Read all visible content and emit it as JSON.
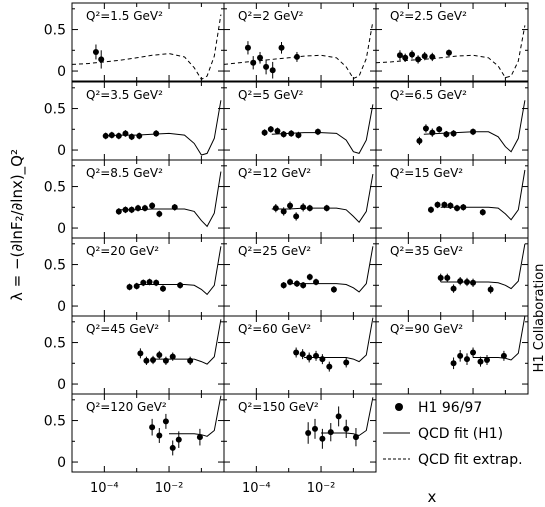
{
  "chart_data": {
    "type": "scatter",
    "ylabel": "λ = −(∂lnF₂/∂lnx)_Q²",
    "xlabel": "x",
    "x_scale": "log",
    "x_ticks": [
      {
        "value": 0.0001,
        "label": "10⁻⁴"
      },
      {
        "value": 0.01,
        "label": "10⁻²"
      }
    ],
    "y_ticks": [
      0,
      0.5
    ],
    "ylim": [
      -0.12,
      0.82
    ],
    "collaboration": "H1 Collaboration",
    "legend": {
      "placement": "bottom-right",
      "entries": [
        {
          "label": "H1 96/97",
          "style": "marker"
        },
        {
          "label": "QCD fit (H1)",
          "style": "solid"
        },
        {
          "label": "QCD fit extrap.",
          "style": "dashed"
        }
      ]
    },
    "panels": [
      {
        "label": "Q²=1.5 GeV²",
        "points": [
          [
            5.5e-05,
            0.23,
            0.09
          ],
          [
            8e-05,
            0.14,
            0.11
          ]
        ],
        "fit": "dashed",
        "fit_y": [
          0.08,
          0.09,
          0.11,
          0.13,
          0.16,
          0.19,
          0.21,
          0.17,
          0.04,
          -0.1,
          -0.06,
          0.18,
          0.68
        ]
      },
      {
        "label": "Q²=2 GeV²",
        "points": [
          [
            5.5e-05,
            0.28,
            0.08
          ],
          [
            8e-05,
            0.1,
            0.08
          ],
          [
            0.00013,
            0.16,
            0.07
          ],
          [
            0.0002,
            0.05,
            0.09
          ],
          [
            0.00032,
            0.01,
            0.1
          ],
          [
            0.0006,
            0.28,
            0.07
          ],
          [
            0.0018,
            0.17,
            0.06
          ]
        ],
        "fit": "dashed",
        "fit_y": [
          0.08,
          0.1,
          0.12,
          0.14,
          0.16,
          0.18,
          0.19,
          0.16,
          0.05,
          -0.09,
          -0.06,
          0.15,
          0.6
        ]
      },
      {
        "label": "Q²=2.5 GeV²",
        "points": [
          [
            5.5e-05,
            0.19,
            0.06
          ],
          [
            8e-05,
            0.16,
            0.05
          ],
          [
            0.00013,
            0.2,
            0.05
          ],
          [
            0.0002,
            0.14,
            0.05
          ],
          [
            0.00032,
            0.18,
            0.05
          ],
          [
            0.00055,
            0.17,
            0.05
          ],
          [
            0.0018,
            0.22,
            0.04
          ]
        ],
        "fit": "dashed",
        "fit_y": [
          0.1,
          0.11,
          0.13,
          0.14,
          0.16,
          0.18,
          0.19,
          0.16,
          0.06,
          -0.08,
          -0.06,
          0.12,
          0.55
        ]
      },
      {
        "label": "Q²=3.5 GeV²",
        "points": [
          [
            0.00011,
            0.17,
            0.04
          ],
          [
            0.00017,
            0.18,
            0.04
          ],
          [
            0.00028,
            0.17,
            0.04
          ],
          [
            0.00045,
            0.2,
            0.04
          ],
          [
            0.0007,
            0.16,
            0.04
          ],
          [
            0.0012,
            0.17,
            0.04
          ],
          [
            0.004,
            0.2,
            0.04
          ]
        ],
        "fit": "solid",
        "fit_y": [
          null,
          null,
          0.17,
          0.18,
          0.18,
          0.19,
          0.2,
          0.18,
          0.08,
          -0.06,
          -0.04,
          0.14,
          0.6
        ]
      },
      {
        "label": "Q²=5 GeV²",
        "points": [
          [
            0.00018,
            0.21,
            0.04
          ],
          [
            0.00028,
            0.25,
            0.04
          ],
          [
            0.00045,
            0.23,
            0.04
          ],
          [
            0.0007,
            0.19,
            0.04
          ],
          [
            0.0012,
            0.2,
            0.04
          ],
          [
            0.002,
            0.18,
            0.04
          ],
          [
            0.008,
            0.22,
            0.04
          ]
        ],
        "fit": "solid",
        "fit_y": [
          null,
          null,
          null,
          0.19,
          0.2,
          0.21,
          0.21,
          0.2,
          0.12,
          -0.02,
          -0.04,
          0.12,
          0.55
        ]
      },
      {
        "label": "Q²=6.5 GeV²",
        "points": [
          [
            0.00022,
            0.11,
            0.05
          ],
          [
            0.00035,
            0.26,
            0.05
          ],
          [
            0.00055,
            0.21,
            0.05
          ],
          [
            0.0009,
            0.25,
            0.04
          ],
          [
            0.0015,
            0.19,
            0.04
          ],
          [
            0.0025,
            0.2,
            0.04
          ],
          [
            0.01,
            0.22,
            0.04
          ]
        ],
        "fit": "solid",
        "fit_y": [
          null,
          null,
          null,
          0.19,
          0.2,
          0.21,
          0.22,
          0.22,
          0.16,
          0.04,
          -0.02,
          0.14,
          0.6
        ]
      },
      {
        "label": "Q²=8.5 GeV²",
        "points": [
          [
            0.00028,
            0.2,
            0.04
          ],
          [
            0.00045,
            0.22,
            0.04
          ],
          [
            0.0007,
            0.22,
            0.04
          ],
          [
            0.0011,
            0.24,
            0.04
          ],
          [
            0.0018,
            0.24,
            0.04
          ],
          [
            0.003,
            0.27,
            0.04
          ],
          [
            0.005,
            0.17,
            0.04
          ],
          [
            0.015,
            0.25,
            0.04
          ]
        ],
        "fit": "solid",
        "fit_y": [
          null,
          null,
          null,
          0.22,
          0.22,
          0.23,
          0.23,
          0.23,
          0.2,
          0.09,
          0.02,
          0.18,
          0.68
        ]
      },
      {
        "label": "Q²=12 GeV²",
        "points": [
          [
            0.0004,
            0.24,
            0.05
          ],
          [
            0.0007,
            0.2,
            0.05
          ],
          [
            0.0011,
            0.27,
            0.05
          ],
          [
            0.0017,
            0.14,
            0.05
          ],
          [
            0.0028,
            0.25,
            0.05
          ],
          [
            0.0045,
            0.24,
            0.04
          ],
          [
            0.015,
            0.24,
            0.04
          ]
        ],
        "fit": "solid",
        "fit_y": [
          null,
          null,
          null,
          0.23,
          0.23,
          0.24,
          0.24,
          0.24,
          0.22,
          0.14,
          0.07,
          0.2,
          0.65
        ]
      },
      {
        "label": "Q²=15 GeV²",
        "points": [
          [
            0.0005,
            0.22,
            0.04
          ],
          [
            0.0008,
            0.28,
            0.04
          ],
          [
            0.0013,
            0.28,
            0.04
          ],
          [
            0.002,
            0.27,
            0.04
          ],
          [
            0.0032,
            0.24,
            0.04
          ],
          [
            0.005,
            0.25,
            0.04
          ],
          [
            0.02,
            0.19,
            0.04
          ]
        ],
        "fit": "solid",
        "fit_y": [
          null,
          null,
          null,
          null,
          0.25,
          0.25,
          0.25,
          0.25,
          0.24,
          0.17,
          0.1,
          0.22,
          0.7
        ]
      },
      {
        "label": "Q²=20 GeV²",
        "points": [
          [
            0.0006,
            0.23,
            0.04
          ],
          [
            0.001,
            0.24,
            0.04
          ],
          [
            0.0016,
            0.28,
            0.04
          ],
          [
            0.0025,
            0.29,
            0.04
          ],
          [
            0.004,
            0.28,
            0.04
          ],
          [
            0.0065,
            0.21,
            0.04
          ],
          [
            0.022,
            0.25,
            0.04
          ]
        ],
        "fit": "solid",
        "fit_y": [
          null,
          null,
          null,
          null,
          0.26,
          0.26,
          0.26,
          0.26,
          0.25,
          0.2,
          0.14,
          0.25,
          0.72
        ]
      },
      {
        "label": "Q²=25 GeV²",
        "points": [
          [
            0.0007,
            0.25,
            0.04
          ],
          [
            0.0011,
            0.29,
            0.04
          ],
          [
            0.0018,
            0.27,
            0.04
          ],
          [
            0.0028,
            0.25,
            0.04
          ],
          [
            0.0045,
            0.35,
            0.04
          ],
          [
            0.007,
            0.29,
            0.04
          ],
          [
            0.025,
            0.2,
            0.04
          ]
        ],
        "fit": "solid",
        "fit_y": [
          null,
          null,
          null,
          null,
          0.27,
          0.27,
          0.27,
          0.27,
          0.26,
          0.22,
          0.17,
          0.27,
          0.72
        ]
      },
      {
        "label": "Q²=35 GeV²",
        "points": [
          [
            0.001,
            0.34,
            0.05
          ],
          [
            0.0016,
            0.34,
            0.05
          ],
          [
            0.0025,
            0.21,
            0.05
          ],
          [
            0.004,
            0.3,
            0.05
          ],
          [
            0.0065,
            0.29,
            0.05
          ],
          [
            0.01,
            0.28,
            0.05
          ],
          [
            0.035,
            0.2,
            0.05
          ]
        ],
        "fit": "solid",
        "fit_y": [
          null,
          null,
          null,
          null,
          0.29,
          0.29,
          0.29,
          0.29,
          0.28,
          0.25,
          0.21,
          0.3,
          0.75
        ]
      },
      {
        "label": "Q²=45 GeV²",
        "points": [
          [
            0.0013,
            0.37,
            0.06
          ],
          [
            0.002,
            0.28,
            0.05
          ],
          [
            0.0032,
            0.29,
            0.05
          ],
          [
            0.005,
            0.35,
            0.05
          ],
          [
            0.008,
            0.28,
            0.05
          ],
          [
            0.013,
            0.33,
            0.05
          ],
          [
            0.045,
            0.28,
            0.05
          ]
        ],
        "fit": "solid",
        "fit_y": [
          null,
          null,
          null,
          null,
          null,
          0.3,
          0.3,
          0.3,
          0.3,
          0.27,
          0.24,
          0.33,
          0.78
        ]
      },
      {
        "label": "Q²=60 GeV²",
        "points": [
          [
            0.0017,
            0.38,
            0.06
          ],
          [
            0.0027,
            0.36,
            0.06
          ],
          [
            0.0043,
            0.32,
            0.06
          ],
          [
            0.007,
            0.34,
            0.06
          ],
          [
            0.011,
            0.3,
            0.06
          ],
          [
            0.018,
            0.21,
            0.06
          ],
          [
            0.06,
            0.26,
            0.06
          ]
        ],
        "fit": "solid",
        "fit_y": [
          null,
          null,
          null,
          null,
          null,
          0.32,
          0.32,
          0.32,
          0.32,
          0.3,
          0.27,
          0.35,
          0.8
        ]
      },
      {
        "label": "Q²=90 GeV²",
        "points": [
          [
            0.0025,
            0.25,
            0.07
          ],
          [
            0.004,
            0.34,
            0.07
          ],
          [
            0.0065,
            0.3,
            0.07
          ],
          [
            0.01,
            0.38,
            0.06
          ],
          [
            0.017,
            0.27,
            0.06
          ],
          [
            0.027,
            0.29,
            0.06
          ],
          [
            0.09,
            0.34,
            0.06
          ]
        ],
        "fit": "solid",
        "fit_y": [
          null,
          null,
          null,
          null,
          null,
          null,
          0.32,
          0.32,
          0.32,
          0.31,
          0.29,
          0.37,
          0.82
        ]
      },
      {
        "label": "Q²=120 GeV²",
        "points": [
          [
            0.003,
            0.42,
            0.1
          ],
          [
            0.005,
            0.32,
            0.09
          ],
          [
            0.008,
            0.49,
            0.09
          ],
          [
            0.013,
            0.17,
            0.09
          ],
          [
            0.02,
            0.27,
            0.1
          ],
          [
            0.09,
            0.3,
            0.1
          ]
        ],
        "fit": "solid",
        "fit_y": [
          null,
          null,
          null,
          null,
          null,
          null,
          0.34,
          0.34,
          0.34,
          0.33,
          0.31,
          0.38,
          0.8
        ]
      },
      {
        "label": "Q²=150 GeV²",
        "points": [
          [
            0.004,
            0.35,
            0.13
          ],
          [
            0.0065,
            0.4,
            0.12
          ],
          [
            0.011,
            0.28,
            0.12
          ],
          [
            0.02,
            0.36,
            0.11
          ],
          [
            0.035,
            0.55,
            0.12
          ],
          [
            0.06,
            0.4,
            0.11
          ],
          [
            0.12,
            0.3,
            0.11
          ]
        ],
        "fit": "solid",
        "fit_y": [
          null,
          null,
          null,
          null,
          null,
          null,
          0.35,
          0.35,
          0.35,
          0.34,
          0.32,
          0.38,
          0.78
        ]
      }
    ],
    "fit_x": [
      1e-05,
      3e-05,
      0.0001,
      0.0003,
      0.001,
      0.003,
      0.01,
      0.03,
      0.06,
      0.1,
      0.15,
      0.25,
      0.4
    ]
  }
}
